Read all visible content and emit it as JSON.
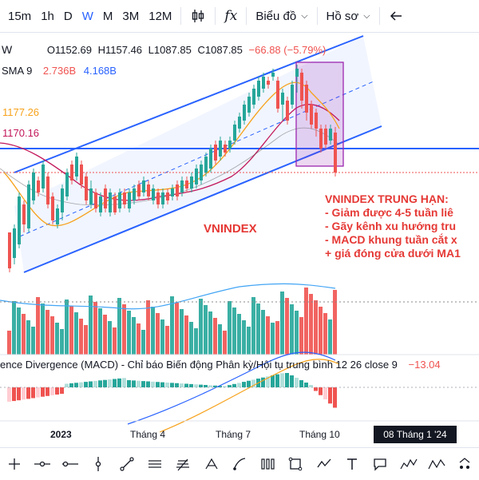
{
  "toolbar": {
    "intervals": [
      "15m",
      "1h",
      "D",
      "W",
      "M",
      "3M",
      "12M"
    ],
    "active_interval": "W",
    "fx_label": "fx",
    "chart_type_label": "Biểu đồ",
    "profile_label": "Hồ sơ"
  },
  "legend": {
    "interval": "W",
    "open": "O1152.69",
    "high": "H1157.46",
    "low": "L1087.85",
    "close": "C1087.85",
    "change": "−66.88 (−5.79%)",
    "sma_label": "SMA 9",
    "sma_value1": "2.736B",
    "sma_value2": "4.168B",
    "price1": "1177.26",
    "price2": "1170.16"
  },
  "annotations": {
    "vnindex_label": "VNINDEX",
    "note_title": "VNINDEX TRUNG HẠN:",
    "note_line1": "- Giảm được 4-5 tuần liê",
    "note_line2": "- Gãy kênh xu hướng tru",
    "note_line3": "- MACD khung tuần cắt x",
    "note_line4": "+ giá đóng cửa dưới MA1"
  },
  "macd": {
    "label": "ence Divergence (MACD) - Chỉ báo Biến động Phân kỳ/Hội tụ trung bình 12 26 close 9",
    "value": "−13.04"
  },
  "time_axis": {
    "labels": [
      "2023",
      "Tháng 4",
      "Tháng 7",
      "Tháng 10"
    ],
    "badge": "08 Tháng 1 '24"
  },
  "colors": {
    "up": "#26a69a",
    "down": "#ef5350",
    "channel": "#2962ff",
    "ma_orange": "#f7a21b",
    "ma_pink": "#c2185b",
    "highlight": "#9c27b0"
  },
  "bottom_tools": [
    "cursor-icon",
    "horizontal-line-icon",
    "ray-icon",
    "vertical-line-icon",
    "trend-line-icon",
    "parallel-channel-icon",
    "pitchfork-icon",
    "fib-icon",
    "brush-icon",
    "path-icon",
    "rectangle-icon",
    "ellipse-icon",
    "pattern-icon",
    "text-icon",
    "callout-icon",
    "elliott-icon",
    "abc-icon",
    "more-icon"
  ]
}
